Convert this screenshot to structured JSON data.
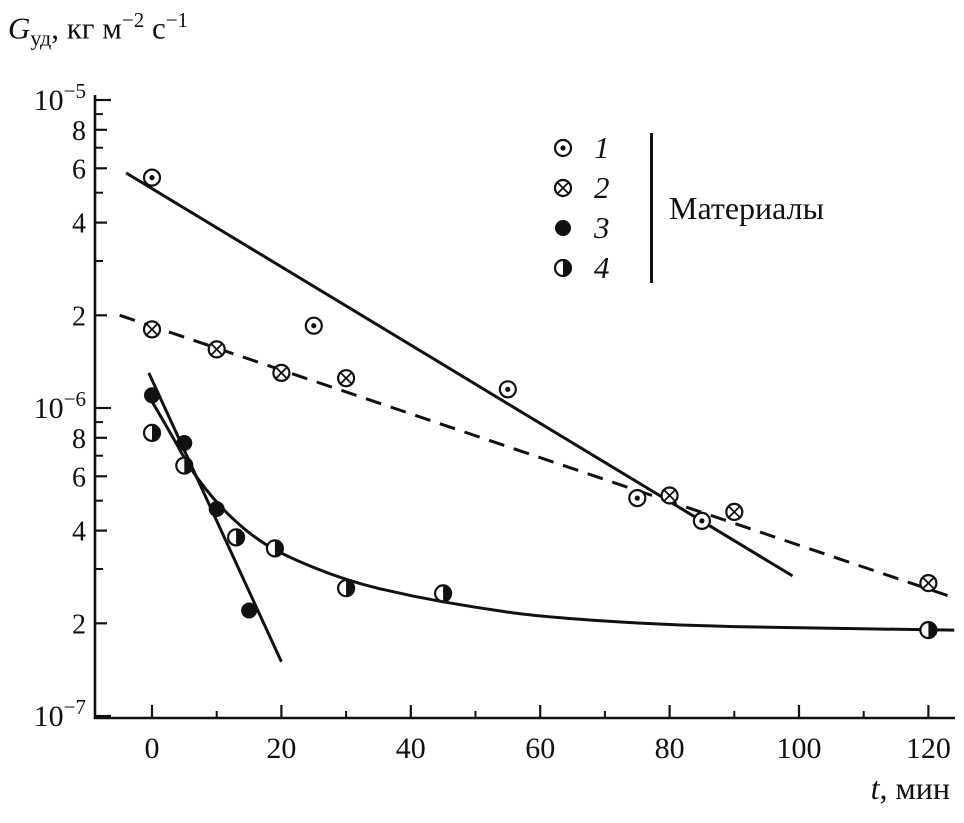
{
  "colors": {
    "ink": "#111111",
    "background": "#ffffff"
  },
  "figure": {
    "y_axis_title": {
      "symbol": "G",
      "subscript": "уд",
      "units_a": ", кг м",
      "sup_a": "−2",
      "units_b": " с",
      "sup_b": "−1"
    },
    "x_axis_title": {
      "symbol": "t",
      "units": ", мин"
    }
  },
  "legend": {
    "title": "Материалы",
    "items": [
      {
        "label": "1",
        "marker": "circle-dot"
      },
      {
        "label": "2",
        "marker": "circle-cross"
      },
      {
        "label": "3",
        "marker": "circle-filled"
      },
      {
        "label": "4",
        "marker": "circle-half"
      }
    ]
  },
  "axes": {
    "x_ticks": [
      {
        "label": "0",
        "value": 0
      },
      {
        "label": "20",
        "value": 20
      },
      {
        "label": "40",
        "value": 40
      },
      {
        "label": "60",
        "value": 60
      },
      {
        "label": "80",
        "value": 80
      },
      {
        "label": "100",
        "value": 100
      },
      {
        "label": "120",
        "value": 120
      }
    ],
    "y_decades": [
      {
        "base": "10",
        "exp": "−5",
        "value": 1e-05
      },
      {
        "base": "10",
        "exp": "−6",
        "value": 1e-06
      },
      {
        "base": "10",
        "exp": "−7",
        "value": 1e-07
      }
    ],
    "y_labeled_minors": [
      {
        "label": "8",
        "value": 8e-06
      },
      {
        "label": "6",
        "value": 6e-06
      },
      {
        "label": "4",
        "value": 4e-06
      },
      {
        "label": "2",
        "value": 2e-06
      },
      {
        "label": "8",
        "value": 8e-07
      },
      {
        "label": "6",
        "value": 6e-07
      },
      {
        "label": "4",
        "value": 4e-07
      },
      {
        "label": "2",
        "value": 2e-07
      }
    ]
  },
  "chart_data": {
    "type": "scatter",
    "title": "",
    "xlabel": "t, мин",
    "ylabel": "Gуд, кг м−2 с−1",
    "x_range": [
      -9,
      124
    ],
    "y_range": [
      1e-07,
      1e-05
    ],
    "y_scale": "log",
    "legend_position": "upper right",
    "legend_title": "Материалы",
    "series": [
      {
        "name": "1",
        "marker": "circle-dot",
        "line": "solid",
        "points": [
          [
            0,
            5.6e-06
          ],
          [
            25,
            1.85e-06
          ],
          [
            55,
            1.15e-06
          ],
          [
            75,
            5.1e-07
          ],
          [
            85,
            4.3e-07
          ]
        ],
        "trend": [
          [
            -4,
            5.8e-06
          ],
          [
            99,
            2.85e-07
          ]
        ]
      },
      {
        "name": "2",
        "marker": "circle-cross",
        "line": "dashed",
        "points": [
          [
            0,
            1.8e-06
          ],
          [
            10,
            1.55e-06
          ],
          [
            20,
            1.3e-06
          ],
          [
            30,
            1.25e-06
          ],
          [
            80,
            5.2e-07
          ],
          [
            90,
            4.6e-07
          ],
          [
            120,
            2.7e-07
          ]
        ],
        "trend": [
          [
            -5,
            2e-06
          ],
          [
            124,
            2.42e-07
          ]
        ]
      },
      {
        "name": "3",
        "marker": "circle-filled",
        "line": "solid",
        "points": [
          [
            0,
            1.1e-06
          ],
          [
            5,
            7.7e-07
          ],
          [
            10,
            4.7e-07
          ],
          [
            15,
            2.2e-07
          ]
        ],
        "trend": [
          [
            -0.5,
            1.3e-06
          ],
          [
            20,
            1.5e-07
          ]
        ]
      },
      {
        "name": "4",
        "marker": "circle-half",
        "line": "curve",
        "points": [
          [
            0,
            8.3e-07
          ],
          [
            5,
            6.5e-07
          ],
          [
            13,
            3.8e-07
          ],
          [
            19,
            3.5e-07
          ],
          [
            30,
            2.6e-07
          ],
          [
            45,
            2.5e-07
          ],
          [
            120,
            1.9e-07
          ]
        ],
        "trend": [
          [
            0,
            1.05e-06
          ],
          [
            3,
            8.2e-07
          ],
          [
            6,
            6.3e-07
          ],
          [
            10,
            4.9e-07
          ],
          [
            15,
            3.9e-07
          ],
          [
            20,
            3.35e-07
          ],
          [
            30,
            2.75e-07
          ],
          [
            40,
            2.45e-07
          ],
          [
            50,
            2.25e-07
          ],
          [
            60,
            2.1e-07
          ],
          [
            80,
            1.97e-07
          ],
          [
            100,
            1.93e-07
          ],
          [
            124,
            1.9e-07
          ]
        ]
      }
    ]
  }
}
